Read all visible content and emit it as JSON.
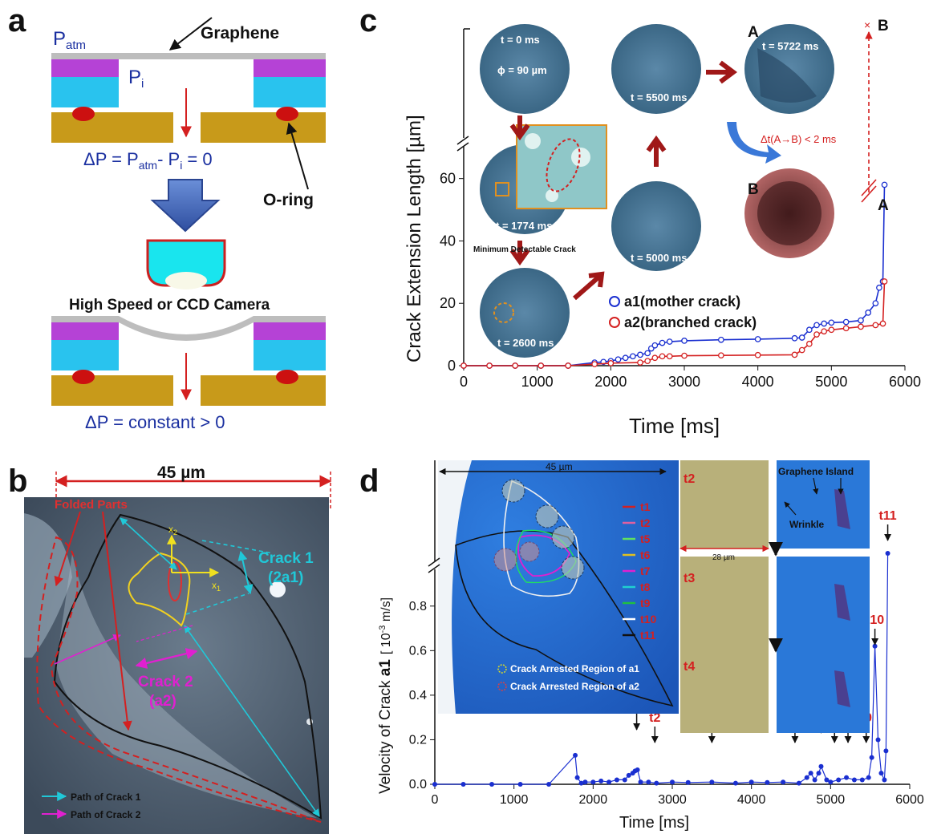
{
  "panels": {
    "a": "a",
    "b": "b",
    "c": "c",
    "d": "d"
  },
  "panel_a": {
    "p_atm": "P",
    "p_atm_sub": "atm",
    "p_i": "P",
    "p_i_sub": "i",
    "graphene": "Graphene",
    "eq1_pre": "ΔP = P",
    "eq1_sub1": "atm",
    "eq1_mid": "- P",
    "eq1_sub2": "i",
    "eq1_post": " = 0",
    "oring": "O-ring",
    "camera": "High Speed or CCD Camera",
    "eq2": "ΔP = constant > 0"
  },
  "panel_b": {
    "scale": "45 µm",
    "folded": "Folded Parts",
    "crack1": "Crack 1",
    "crack1_sub": "(2a1)",
    "crack2": "Crack 2",
    "crack2_sub": "(a2)",
    "x1": "x",
    "x1_sub": "1",
    "x2": "x",
    "x2_sub": "2",
    "legend1": "Path of Crack 1",
    "legend2": "Path of Crack 2"
  },
  "panel_c": {
    "ylabel": "Crack Extension Length [µm]",
    "xlabel": "Time [ms]",
    "xticks": [
      "0",
      "1000",
      "2000",
      "3000",
      "4000",
      "5000",
      "6000"
    ],
    "yticks": [
      "0",
      "20",
      "40",
      "60"
    ],
    "frames": {
      "f0_t": "t = 0 ms",
      "f0_phi": "ϕ = 90 µm",
      "f1774": "t = 1774 ms",
      "min_crack": "Minimum Detectable Crack",
      "f2600": "t = 2600 ms",
      "f5000": "t = 5000 ms",
      "f5500": "t = 5500 ms",
      "f5722": "t = 5722 ms",
      "label_A": "A",
      "label_B": "B",
      "dt": "Δt(A→B) < 2 ms"
    },
    "legend": [
      "a1(mother crack)",
      "a2(branched crack)"
    ],
    "end_A": "A",
    "end_B": "B",
    "end_x": "×"
  },
  "panel_d": {
    "ylabel_pre": "Velocity of Crack ",
    "ylabel_bold": "a1",
    "ylabel_unit": "[ 10",
    "ylabel_exp": "-3",
    "ylabel_unit2": " m/s]",
    "xlabel": "Time [ms]",
    "xticks": [
      "0",
      "1000",
      "2000",
      "3000",
      "4000",
      "5000",
      "6000"
    ],
    "yticks": [
      "0.0",
      "0.2",
      "0.4",
      "0.6",
      "0.8"
    ],
    "inset_scale": "45 µm",
    "inset_legend": [
      "t1",
      "t2",
      "t5",
      "t6",
      "t7",
      "t8",
      "t9",
      "t10",
      "t11"
    ],
    "arrest1": "Crack Arrested Region of a1",
    "arrest2": "Crack Arrested Region of a2",
    "frame_t2": "t2",
    "frame_t3": "t3",
    "frame_t4": "t4",
    "scale28": "28 µm",
    "graphene_island": "Graphene Island",
    "wrinkle": "Wrinkle",
    "markers": [
      "t1",
      "t2",
      "t3",
      "t4",
      "t5",
      "t6",
      "t7",
      "t8",
      "t9",
      "t10",
      "t11"
    ]
  },
  "colors": {
    "red": "#d42020",
    "blue": "#1a2fd0",
    "navy": "#1f2f8f",
    "cyan": "#20c8d8",
    "magenta": "#e020d0"
  },
  "chart_data": [
    {
      "type": "scatter",
      "panel": "c",
      "xlabel": "Time [ms]",
      "ylabel": "Crack Extension Length [µm]",
      "xlim": [
        0,
        6000
      ],
      "ylim": [
        0,
        75
      ],
      "series": [
        {
          "name": "a1(mother crack)",
          "x": [
            0,
            350,
            700,
            1050,
            1420,
            1780,
            1900,
            2000,
            2100,
            2200,
            2300,
            2400,
            2500,
            2550,
            2600,
            2700,
            2800,
            3000,
            3500,
            4000,
            4500,
            4600,
            4700,
            4800,
            4900,
            5000,
            5200,
            5400,
            5500,
            5600,
            5650,
            5700,
            5722
          ],
          "y": [
            0,
            0,
            0,
            0,
            0,
            1,
            1.2,
            1.5,
            2,
            2.5,
            3,
            3.5,
            4,
            5.5,
            6.5,
            7.3,
            7.7,
            8,
            8.3,
            8.5,
            8.8,
            9,
            11.5,
            13,
            13.5,
            13.8,
            14,
            14.5,
            17,
            20,
            25,
            27,
            58
          ]
        },
        {
          "name": "a2(branched crack)",
          "x": [
            0,
            350,
            700,
            1050,
            1420,
            1780,
            2000,
            2400,
            2500,
            2600,
            2700,
            2800,
            3000,
            3500,
            4000,
            4500,
            4600,
            4700,
            4800,
            4900,
            5000,
            5200,
            5400,
            5600,
            5700,
            5722
          ],
          "y": [
            0,
            0,
            0,
            0,
            0,
            0.5,
            0.8,
            1,
            1.5,
            2.5,
            3,
            3,
            3.2,
            3.3,
            3.4,
            3.5,
            5,
            7,
            10,
            11,
            11.5,
            12,
            12.5,
            13,
            13.5,
            27
          ]
        }
      ]
    },
    {
      "type": "line",
      "panel": "d",
      "xlabel": "Time [ms]",
      "ylabel": "Velocity of Crack a1 [10-3 m/s]",
      "xlim": [
        0,
        6000
      ],
      "ylim": [
        0,
        1.0
      ],
      "series": [
        {
          "name": "a1",
          "x": [
            0,
            360,
            720,
            1080,
            1440,
            1774,
            1800,
            1850,
            1900,
            2000,
            2100,
            2200,
            2300,
            2400,
            2450,
            2500,
            2530,
            2560,
            2600,
            2700,
            2800,
            3000,
            3200,
            3500,
            3800,
            4000,
            4200,
            4400,
            4600,
            4700,
            4750,
            4800,
            4850,
            4880,
            4950,
            5000,
            5100,
            5200,
            5300,
            5400,
            5480,
            5520,
            5560,
            5600,
            5640,
            5680,
            5700,
            5722
          ],
          "y": [
            0,
            0,
            0,
            0,
            0,
            0.13,
            0.03,
            0.005,
            0.01,
            0.01,
            0.015,
            0.01,
            0.02,
            0.02,
            0.04,
            0.05,
            0.06,
            0.065,
            0.01,
            0.01,
            0.005,
            0.01,
            0.008,
            0.01,
            0.005,
            0.01,
            0.008,
            0.01,
            0.005,
            0.03,
            0.05,
            0.02,
            0.05,
            0.08,
            0.02,
            0.01,
            0.02,
            0.03,
            0.02,
            0.02,
            0.03,
            0.12,
            0.62,
            0.2,
            0.05,
            0.02,
            0.15,
            0.98
          ]
        }
      ],
      "markers": [
        {
          "label": "t1",
          "x": 2550
        },
        {
          "label": "t2",
          "x": 2780
        },
        {
          "label": "t3",
          "x": 3500
        },
        {
          "label": "t4",
          "x": 4550
        },
        {
          "label": "t5",
          "x": 4720
        },
        {
          "label": "t6",
          "x": 4880
        },
        {
          "label": "t7",
          "x": 5050
        },
        {
          "label": "t8",
          "x": 5220
        },
        {
          "label": "t9",
          "x": 5450
        },
        {
          "label": "t10",
          "x": 5560
        },
        {
          "label": "t11",
          "x": 5722
        }
      ]
    }
  ]
}
